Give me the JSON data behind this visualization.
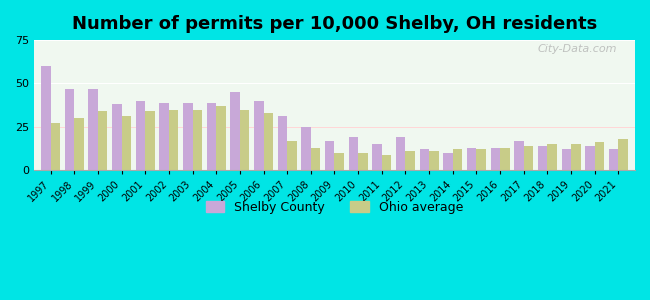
{
  "title": "Number of permits per 10,000 Shelby, OH residents",
  "years": [
    1997,
    1998,
    1999,
    2000,
    2001,
    2002,
    2003,
    2004,
    2005,
    2006,
    2007,
    2008,
    2009,
    2010,
    2011,
    2012,
    2013,
    2014,
    2015,
    2016,
    2017,
    2018,
    2019,
    2020,
    2021
  ],
  "shelby": [
    60,
    47,
    47,
    38,
    40,
    39,
    39,
    39,
    45,
    40,
    31,
    25,
    17,
    19,
    15,
    19,
    12,
    10,
    13,
    13,
    17,
    14,
    12,
    14,
    12
  ],
  "ohio": [
    27,
    30,
    34,
    31,
    34,
    35,
    35,
    37,
    35,
    33,
    17,
    13,
    10,
    10,
    9,
    11,
    11,
    12,
    12,
    13,
    14,
    15,
    15,
    16,
    18
  ],
  "shelby_color": "#c8a8d8",
  "ohio_color": "#c8cc88",
  "background_outer": "#00e5e5",
  "background_inner_top": "#f0f8f0",
  "background_inner_bottom": "#d8f0e8",
  "ylim": [
    0,
    75
  ],
  "yticks": [
    0,
    25,
    50,
    75
  ],
  "title_fontsize": 13,
  "legend_label_shelby": "Shelby County",
  "legend_label_ohio": "Ohio average",
  "watermark": "City-Data.com"
}
